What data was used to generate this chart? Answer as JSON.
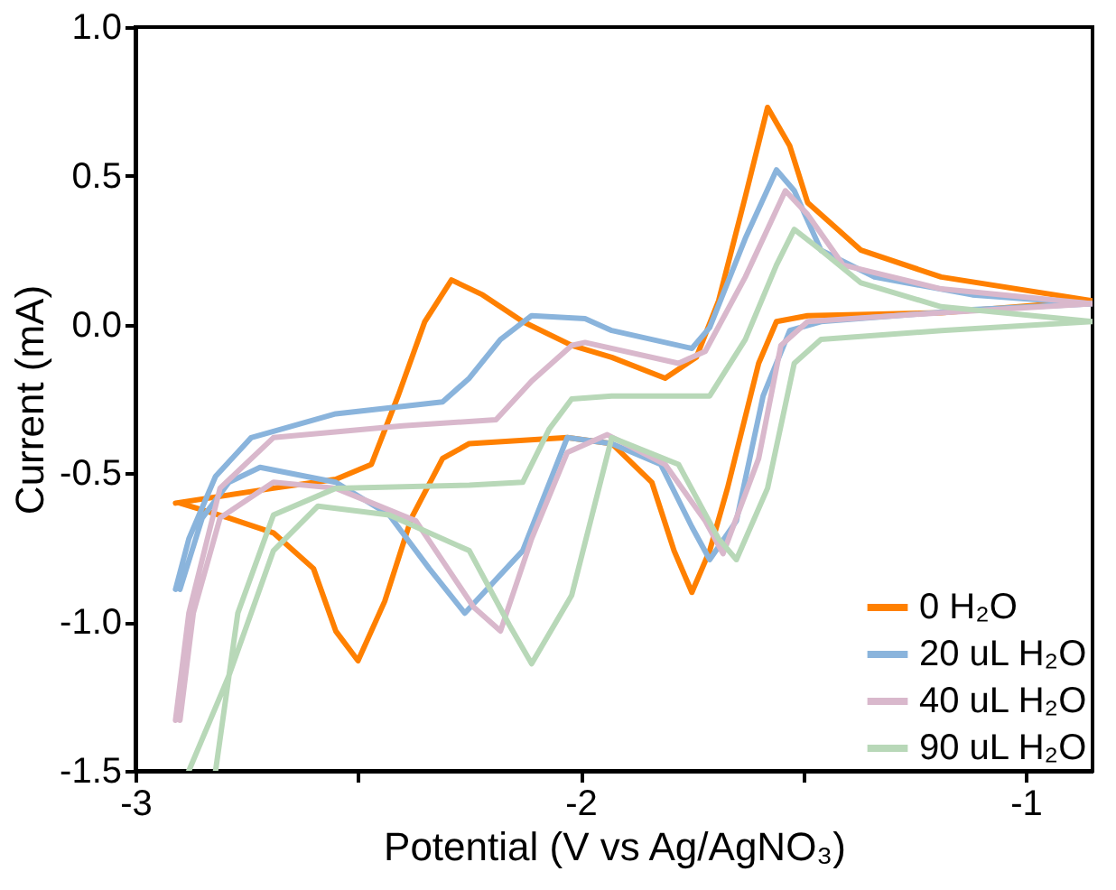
{
  "chart_data": {
    "type": "line",
    "xlabel": "Potential (V vs Ag/AgNO₃)",
    "ylabel": "Current (mA)",
    "xlim": [
      -3,
      -0.85
    ],
    "ylim": [
      -1.5,
      1.0
    ],
    "xticks": [
      -3,
      {
        "value": -2.5,
        "label": null
      },
      -2,
      {
        "value": -1.5,
        "label": null
      },
      -1
    ],
    "yticks": [
      {
        "value": 1.0,
        "label": "1.0"
      },
      {
        "value": 0.5,
        "label": "0.5"
      },
      {
        "value": 0.0,
        "label": "0.0"
      },
      {
        "value": -0.5,
        "label": "-0.5"
      },
      {
        "value": -1.0,
        "label": "-1.0"
      },
      {
        "value": -1.5,
        "label": "-1.5"
      }
    ],
    "legend": "bottom right",
    "grid": false,
    "marker": "none",
    "line_style": "solid",
    "series": [
      {
        "name": "0 H₂O",
        "color": "#ff8000",
        "x": [
          -2.91,
          -2.69,
          -2.55,
          -2.47,
          -2.41,
          -2.35,
          -2.29,
          -2.22,
          -2.13,
          -2.02,
          -1.93,
          -1.81,
          -1.74,
          -1.69,
          -1.63,
          -1.58,
          -1.53,
          -1.49,
          -1.37,
          -1.19,
          -0.85,
          -1.19,
          -1.49,
          -1.56,
          -1.6,
          -1.67,
          -1.71,
          -1.75,
          -1.79,
          -1.84,
          -1.93,
          -2.03,
          -2.25,
          -2.31,
          -2.38,
          -2.44,
          -2.5,
          -2.55,
          -2.6,
          -2.69,
          -2.79,
          -2.9
        ],
        "values": [
          -0.6,
          -0.55,
          -0.52,
          -0.47,
          -0.24,
          0.01,
          0.15,
          0.1,
          0.01,
          -0.07,
          -0.11,
          -0.18,
          -0.11,
          0.08,
          0.43,
          0.73,
          0.6,
          0.41,
          0.25,
          0.16,
          0.08,
          0.04,
          0.03,
          0.01,
          -0.13,
          -0.55,
          -0.76,
          -0.9,
          -0.76,
          -0.53,
          -0.4,
          -0.38,
          -0.4,
          -0.45,
          -0.65,
          -0.93,
          -1.13,
          -1.03,
          -0.82,
          -0.7,
          -0.65,
          -0.6
        ]
      },
      {
        "name": "20 uL H₂O",
        "color": "#8ab4dc",
        "x": [
          -2.91,
          -2.88,
          -2.82,
          -2.74,
          -2.55,
          -2.31,
          -2.25,
          -2.18,
          -2.11,
          -1.99,
          -1.93,
          -1.75,
          -1.71,
          -1.63,
          -1.56,
          -1.52,
          -1.46,
          -1.34,
          -1.12,
          -0.85,
          -1.12,
          -1.46,
          -1.53,
          -1.59,
          -1.65,
          -1.71,
          -1.75,
          -1.82,
          -1.93,
          -2.03,
          -2.13,
          -2.26,
          -2.34,
          -2.43,
          -2.55,
          -2.72,
          -2.79,
          -2.85,
          -2.9
        ],
        "values": [
          -0.89,
          -0.72,
          -0.51,
          -0.38,
          -0.3,
          -0.26,
          -0.18,
          -0.05,
          0.03,
          0.02,
          -0.02,
          -0.08,
          -0.01,
          0.29,
          0.52,
          0.45,
          0.25,
          0.16,
          0.1,
          0.07,
          0.05,
          0.01,
          -0.02,
          -0.24,
          -0.66,
          -0.79,
          -0.68,
          -0.47,
          -0.4,
          -0.38,
          -0.76,
          -0.97,
          -0.82,
          -0.64,
          -0.53,
          -0.48,
          -0.53,
          -0.65,
          -0.89
        ]
      },
      {
        "name": "40 uL H₂O",
        "color": "#d9b8cc",
        "x": [
          -2.91,
          -2.88,
          -2.81,
          -2.69,
          -2.4,
          -2.19,
          -2.11,
          -2.02,
          -1.99,
          -1.78,
          -1.72,
          -1.63,
          -1.54,
          -1.49,
          -1.41,
          -1.19,
          -0.85,
          -1.19,
          -1.49,
          -1.55,
          -1.6,
          -1.68,
          -1.72,
          -1.81,
          -1.94,
          -2.03,
          -2.11,
          -2.18,
          -2.24,
          -2.37,
          -2.55,
          -2.69,
          -2.81,
          -2.87,
          -2.9
        ],
        "values": [
          -1.33,
          -0.97,
          -0.55,
          -0.38,
          -0.34,
          -0.32,
          -0.19,
          -0.07,
          -0.06,
          -0.13,
          -0.09,
          0.16,
          0.45,
          0.37,
          0.2,
          0.12,
          0.07,
          0.04,
          0.01,
          -0.07,
          -0.45,
          -0.77,
          -0.66,
          -0.47,
          -0.37,
          -0.43,
          -0.72,
          -1.03,
          -0.95,
          -0.66,
          -0.55,
          -0.53,
          -0.65,
          -0.97,
          -1.33
        ]
      },
      {
        "name": "90 uL H₂O",
        "color": "#b8d8b8",
        "x": [
          -2.82,
          -2.77,
          -2.69,
          -2.55,
          -2.25,
          -2.13,
          -2.07,
          -2.02,
          -1.93,
          -1.71,
          -1.63,
          -1.56,
          -1.52,
          -1.46,
          -1.37,
          -1.19,
          -0.85,
          -1.19,
          -1.46,
          -1.52,
          -1.58,
          -1.65,
          -1.69,
          -1.78,
          -1.93,
          -2.02,
          -2.11,
          -2.16,
          -2.25,
          -2.43,
          -2.59,
          -2.69,
          -2.79,
          -2.88
        ],
        "values": [
          -1.5,
          -0.97,
          -0.64,
          -0.55,
          -0.54,
          -0.53,
          -0.35,
          -0.25,
          -0.24,
          -0.24,
          -0.05,
          0.2,
          0.32,
          0.25,
          0.14,
          0.06,
          0.01,
          -0.02,
          -0.05,
          -0.13,
          -0.55,
          -0.79,
          -0.72,
          -0.47,
          -0.38,
          -0.91,
          -1.14,
          -1.01,
          -0.76,
          -0.64,
          -0.61,
          -0.76,
          -1.18,
          -1.5
        ]
      }
    ]
  }
}
